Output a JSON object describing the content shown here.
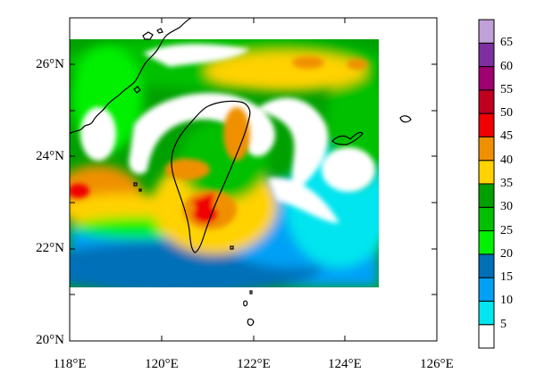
{
  "map": {
    "lon_ticks": [
      "118°E",
      "120°E",
      "122°E",
      "124°E",
      "126°E"
    ],
    "lat_ticks": [
      "26°N",
      "24°N",
      "22°N",
      "20°N"
    ],
    "lon_range": [
      118,
      126
    ],
    "lat_range": [
      20,
      27
    ]
  },
  "colorbar": {
    "levels": [
      "5",
      "10",
      "15",
      "20",
      "25",
      "30",
      "35",
      "40",
      "45",
      "50",
      "55",
      "60",
      "65"
    ],
    "colors": [
      "#ffffff",
      "#00e5ef",
      "#00a0f6",
      "#0070b8",
      "#00f000",
      "#00c000",
      "#00a000",
      "#ffd200",
      "#f09000",
      "#f00000",
      "#c00020",
      "#a00070",
      "#7e2fa0",
      "#c0a0d8"
    ]
  }
}
